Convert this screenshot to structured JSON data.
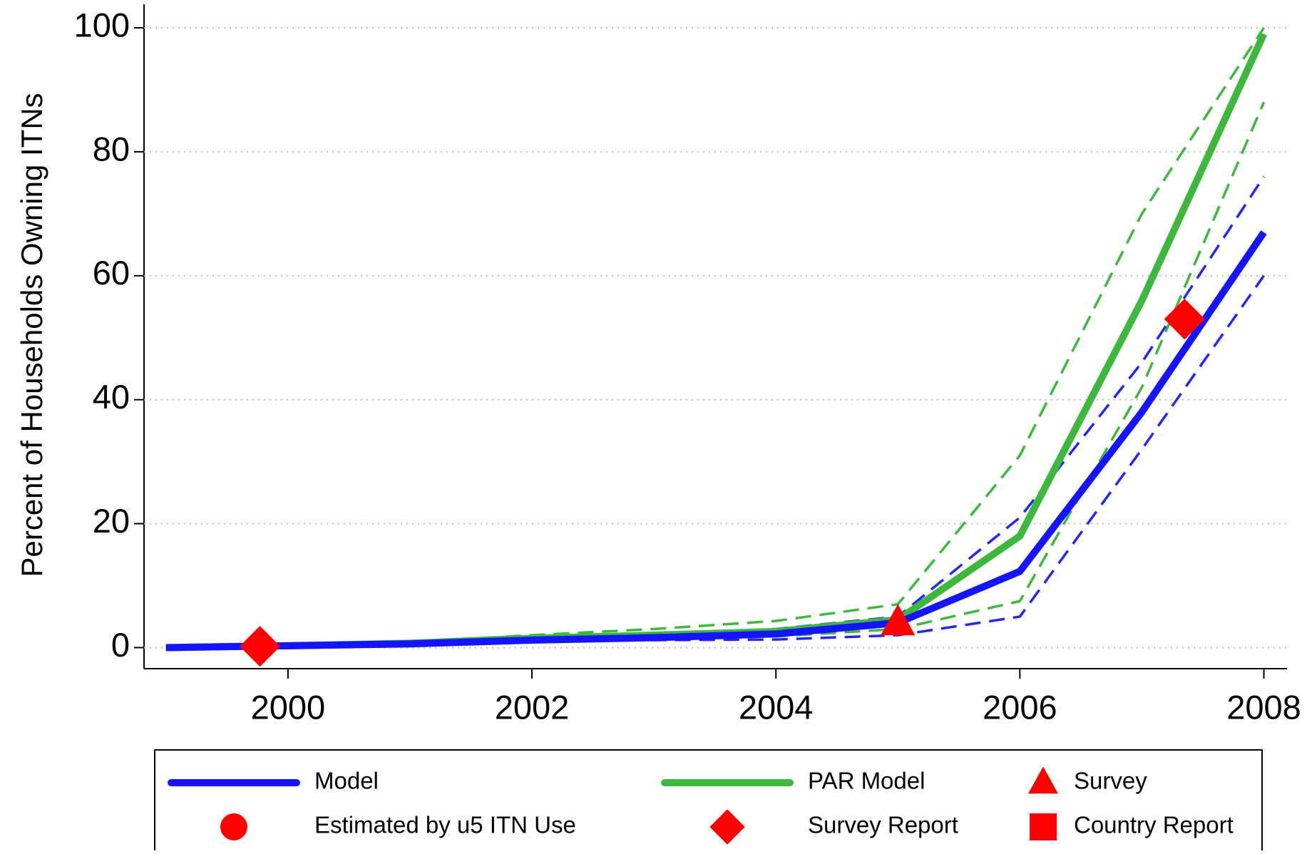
{
  "chart_data": {
    "type": "line",
    "ylabel": "Percent of Households Owning ITNs",
    "x": [
      1999,
      2000,
      2001,
      2002,
      2003,
      2004,
      2005,
      2006,
      2007,
      2008
    ],
    "series": [
      {
        "color": "#2424ff",
        "style": "dashed",
        "values": [
          0,
          0.3,
          0.7,
          1.5,
          2,
          3,
          5,
          21,
          46,
          76
        ]
      },
      {
        "color": "#2424ff",
        "style": "dashed",
        "values": [
          0,
          0.2,
          0.5,
          1,
          1.2,
          1.3,
          2,
          5,
          32,
          60
        ]
      },
      {
        "color": "#3cb83c",
        "style": "dashed",
        "values": [
          0,
          0.3,
          0.9,
          2,
          3,
          4.3,
          7,
          31,
          70,
          100
        ]
      },
      {
        "color": "#3cb83c",
        "style": "dashed",
        "values": [
          0,
          0.2,
          0.6,
          1.2,
          1.5,
          1.8,
          3,
          7.5,
          42,
          88
        ]
      },
      {
        "name": "PAR Model",
        "color": "#3cb83c",
        "style": "solid",
        "values": [
          0,
          0.3,
          0.7,
          1.5,
          2,
          2.6,
          4.5,
          18,
          56,
          99
        ]
      },
      {
        "name": "Model",
        "color": "#1414ff",
        "style": "solid",
        "values": [
          0,
          0.3,
          0.6,
          1.2,
          1.6,
          2.2,
          4,
          12.3,
          38,
          67
        ]
      }
    ],
    "markers": [
      {
        "name": "Survey",
        "shape": "triangle",
        "color": "#ff0000",
        "x": [
          2005
        ],
        "values": [
          4
        ]
      },
      {
        "name": "Estimated by u5 ITN Use",
        "shape": "circle",
        "color": "#ff0000",
        "x": [],
        "values": []
      },
      {
        "name": "Survey Report",
        "shape": "diamond",
        "color": "#ff0000",
        "x": [
          1999.77,
          2007.35
        ],
        "values": [
          0.2,
          53
        ]
      },
      {
        "name": "Country Report",
        "shape": "square",
        "color": "#ff0000",
        "x": [],
        "values": []
      }
    ],
    "xlim": [
      1998.82,
      2008.19
    ],
    "xticks": [
      2000,
      2002,
      2004,
      2006,
      2008
    ],
    "ylim": [
      -3.4,
      103.8
    ],
    "yticks": [
      0,
      20,
      40,
      60,
      80,
      100
    ],
    "grid": true,
    "legend": "bottom"
  }
}
